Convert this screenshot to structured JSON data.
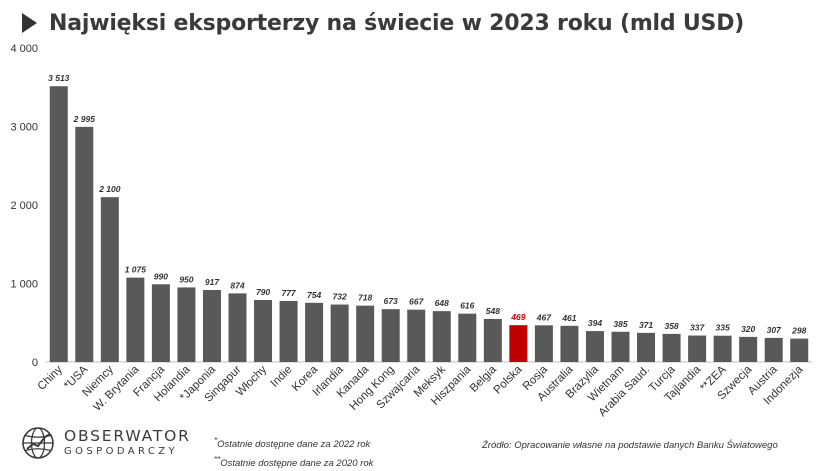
{
  "title": "Najwięksi eksporterzy na świecie w 2023 roku (mld USD)",
  "footnotes": [
    {
      "mark": "*",
      "text": "Ostatnie dostępne dane za 2022 rok"
    },
    {
      "mark": "**",
      "text": "Ostatnie dostępne dane za 2020 rok"
    }
  ],
  "source": "Źródło: Opracowanie własne na podstawie danych Banku Światowego",
  "logo": {
    "name": "OBSERWATOR",
    "sub": "GOSPODARCZY"
  },
  "colors": {
    "bar": "#595959",
    "highlight": "#c00000",
    "text": "#333333"
  },
  "chart_data": {
    "type": "bar",
    "title": "Najwięksi eksporterzy na świecie w 2023 roku (mld USD)",
    "categories": [
      "Chiny",
      "*USA",
      "Niemcy",
      "W. Brytania",
      "Francja",
      "Holandia",
      "*Japonia",
      "Singapur",
      "Włochy",
      "Indie",
      "Korea",
      "Irlandia",
      "Kanada",
      "Hong Kong",
      "Szwajcaria",
      "Meksyk",
      "Hiszpania",
      "Belgia",
      "Polska",
      "Rosja",
      "Australia",
      "Brazylia",
      "Wietnam",
      "Arabia Saud.",
      "Turcja",
      "Tajlandia",
      "**ZEA",
      "Szwecja",
      "Austria",
      "Indonezja"
    ],
    "values": [
      3513,
      2995,
      2100,
      1075,
      990,
      950,
      917,
      874,
      790,
      777,
      754,
      732,
      718,
      673,
      667,
      648,
      616,
      548,
      469,
      467,
      461,
      394,
      385,
      371,
      358,
      337,
      335,
      320,
      307,
      298
    ],
    "value_labels": [
      "3 513",
      "2 995",
      "2 100",
      "1 075",
      "990",
      "950",
      "917",
      "874",
      "790",
      "777",
      "754",
      "732",
      "718",
      "673",
      "667",
      "648",
      "616",
      "548",
      "469",
      "467",
      "461",
      "394",
      "385",
      "371",
      "358",
      "337",
      "335",
      "320",
      "307",
      "298"
    ],
    "highlight": "Polska",
    "ylim": [
      0,
      4000
    ],
    "yticks": [
      0,
      1000,
      2000,
      3000,
      4000
    ],
    "ytick_labels": [
      "0",
      "1 000",
      "2 000",
      "3 000",
      "4 000"
    ],
    "xlabel": "",
    "ylabel": "",
    "grid": false,
    "legend": "none"
  }
}
